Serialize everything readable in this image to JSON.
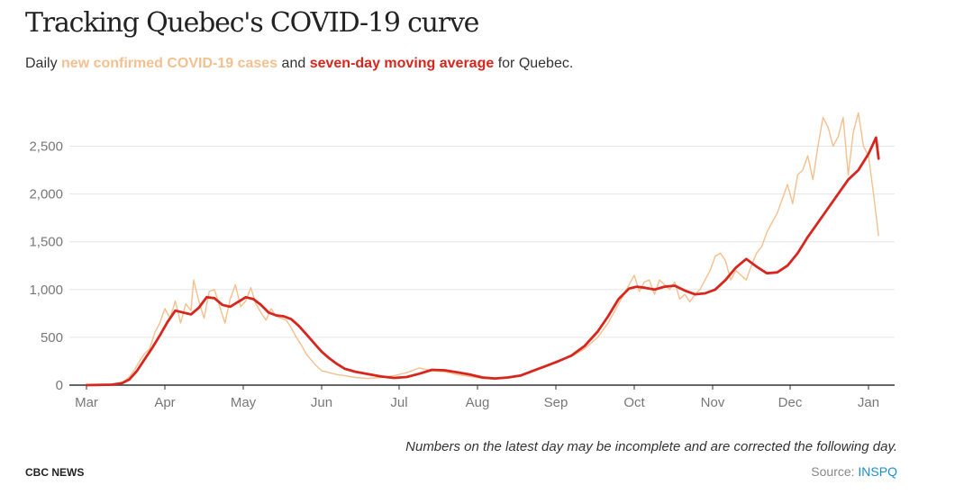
{
  "header": {
    "title": "Tracking Quebec's COVID-19 curve",
    "subtitle_pre": "Daily ",
    "subtitle_cases": "new confirmed COVID-19 cases",
    "subtitle_mid": " and ",
    "subtitle_avg": "seven-day moving average",
    "subtitle_post": " for Quebec."
  },
  "footer": {
    "note": "Numbers on the latest day may be incomplete and are corrected the following day.",
    "brand": "CBC NEWS",
    "source_label": "Source: ",
    "source_link": "INSPQ"
  },
  "colors": {
    "daily": "#f6bf8e",
    "average": "#d7261e",
    "grid": "#e6e6e6",
    "axis": "#333333"
  },
  "chart_data": {
    "type": "line",
    "x_ticks": [
      "Mar",
      "Apr",
      "May",
      "Jun",
      "Jul",
      "Aug",
      "Sep",
      "Oct",
      "Nov",
      "Dec",
      "Jan"
    ],
    "y_ticks": [
      "0",
      "500",
      "1,000",
      "1,500",
      "2,000",
      "2,500"
    ],
    "ylim": [
      0,
      2900
    ],
    "grid": true,
    "x_unit": "days since Mar 1, 2020",
    "series": [
      {
        "name": "new confirmed COVID-19 cases",
        "x": [
          0,
          7,
          12,
          15,
          17,
          19,
          21,
          23,
          25,
          27,
          29,
          31,
          33,
          35,
          37,
          39,
          41,
          42,
          44,
          46,
          48,
          50,
          52,
          54,
          56,
          58,
          60,
          62,
          64,
          66,
          68,
          70,
          72,
          74,
          76,
          78,
          80,
          82,
          84,
          86,
          88,
          90,
          92,
          95,
          98,
          101,
          105,
          110,
          115,
          120,
          125,
          130,
          135,
          140,
          145,
          150,
          155,
          160,
          165,
          170,
          175,
          180,
          185,
          190,
          195,
          200,
          204,
          208,
          212,
          214,
          216,
          218,
          220,
          222,
          224,
          226,
          228,
          230,
          232,
          234,
          236,
          238,
          240,
          242,
          244,
          246,
          248,
          250,
          252,
          254,
          256,
          258,
          260,
          262,
          264,
          266,
          268,
          270,
          272,
          274,
          276,
          278,
          280,
          282,
          284,
          286,
          288,
          290,
          292,
          294,
          296,
          298,
          300,
          302,
          304,
          306,
          308,
          310
        ],
        "values": [
          0,
          5,
          15,
          40,
          90,
          160,
          250,
          330,
          380,
          550,
          650,
          800,
          700,
          880,
          650,
          850,
          780,
          1100,
          880,
          700,
          980,
          1000,
          820,
          650,
          900,
          1050,
          820,
          880,
          1020,
          850,
          760,
          680,
          800,
          720,
          700,
          680,
          600,
          500,
          420,
          320,
          260,
          200,
          150,
          130,
          110,
          100,
          80,
          70,
          80,
          100,
          130,
          180,
          150,
          140,
          110,
          90,
          70,
          60,
          80,
          100,
          150,
          200,
          260,
          300,
          380,
          500,
          650,
          850,
          1050,
          1150,
          980,
          1080,
          1100,
          950,
          1100,
          1050,
          1000,
          1080,
          900,
          950,
          870,
          950,
          1000,
          1100,
          1200,
          1350,
          1380,
          1300,
          1100,
          1200,
          1150,
          1100,
          1250,
          1380,
          1450,
          1600,
          1700,
          1800,
          1950,
          2100,
          1900,
          2200,
          2250,
          2400,
          2150,
          2500,
          2800,
          2700,
          2500,
          2600,
          2800,
          2200,
          2650,
          2850,
          2500,
          2400,
          2000,
          1560
        ]
      },
      {
        "name": "seven-day moving average",
        "x": [
          0,
          10,
          14,
          17,
          20,
          23,
          26,
          29,
          32,
          35,
          38,
          41,
          44,
          47,
          50,
          53,
          56,
          59,
          62,
          65,
          68,
          71,
          74,
          77,
          80,
          83,
          86,
          89,
          92,
          95,
          98,
          101,
          105,
          110,
          115,
          120,
          125,
          130,
          135,
          140,
          145,
          150,
          155,
          160,
          165,
          170,
          175,
          180,
          185,
          190,
          195,
          200,
          204,
          208,
          212,
          215,
          218,
          222,
          226,
          230,
          234,
          238,
          242,
          246,
          250,
          254,
          258,
          262,
          266,
          270,
          274,
          278,
          282,
          286,
          290,
          294,
          298,
          302,
          306,
          309,
          310
        ],
        "values": [
          0,
          5,
          20,
          60,
          150,
          270,
          390,
          520,
          660,
          780,
          760,
          740,
          810,
          920,
          910,
          840,
          820,
          870,
          920,
          900,
          840,
          760,
          730,
          720,
          690,
          620,
          530,
          440,
          350,
          280,
          220,
          170,
          140,
          115,
          90,
          75,
          85,
          120,
          160,
          155,
          135,
          110,
          80,
          70,
          80,
          100,
          150,
          200,
          250,
          310,
          410,
          560,
          720,
          900,
          1010,
          1030,
          1020,
          1000,
          1030,
          1040,
          990,
          950,
          960,
          1000,
          1100,
          1230,
          1320,
          1240,
          1170,
          1180,
          1250,
          1380,
          1550,
          1700,
          1850,
          2000,
          2150,
          2250,
          2420,
          2590,
          2370
        ]
      }
    ]
  }
}
